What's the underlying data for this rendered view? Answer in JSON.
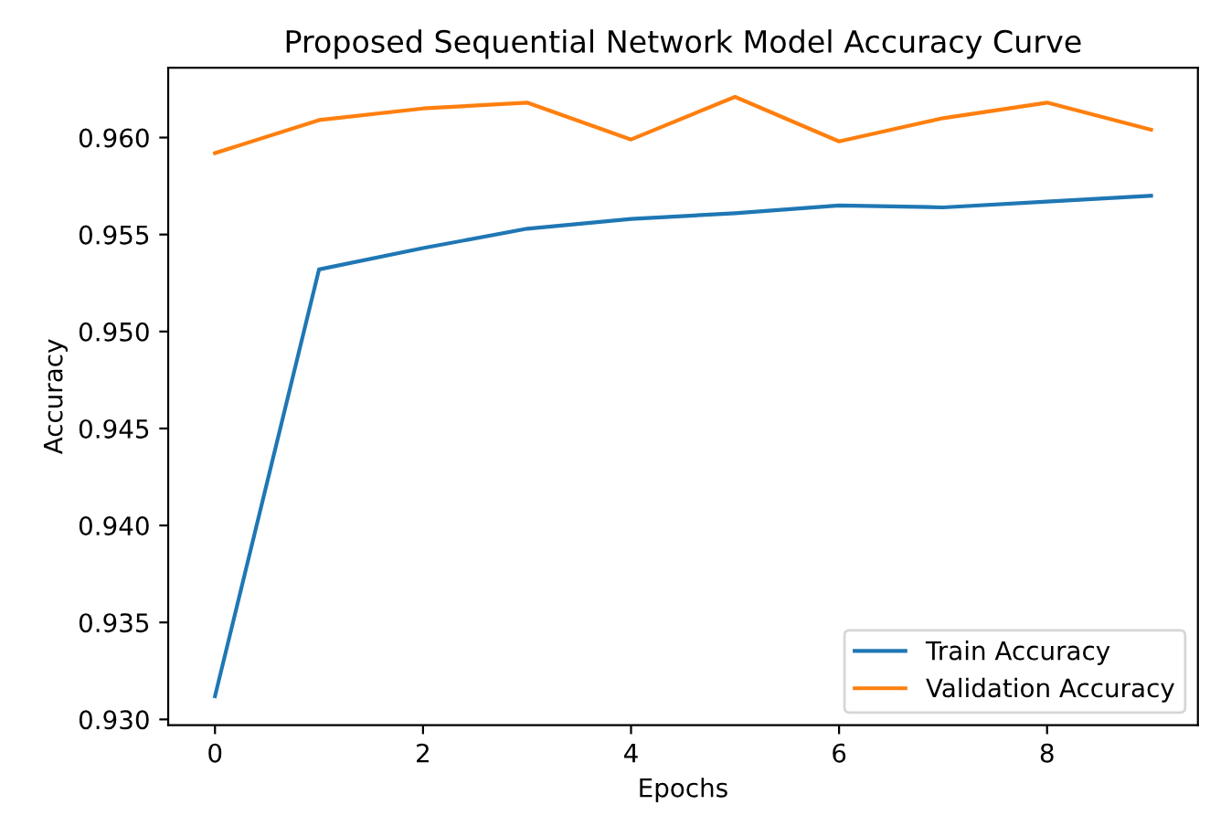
{
  "chart_data": {
    "type": "line",
    "title": "Proposed Sequential Network Model Accuracy Curve",
    "xlabel": "Epochs",
    "ylabel": "Accuracy",
    "x": [
      0,
      1,
      2,
      3,
      4,
      5,
      6,
      7,
      8,
      9
    ],
    "series": [
      {
        "name": "Train Accuracy",
        "color": "#1f77b4",
        "values": [
          0.9312,
          0.9532,
          0.9543,
          0.9553,
          0.9558,
          0.9561,
          0.9565,
          0.9564,
          0.9567,
          0.957
        ]
      },
      {
        "name": "Validation Accuracy",
        "color": "#ff7f0e",
        "values": [
          0.9592,
          0.9609,
          0.9615,
          0.9618,
          0.9599,
          0.9621,
          0.9598,
          0.961,
          0.9618,
          0.9604
        ]
      }
    ],
    "xlim": [
      -0.45,
      9.45
    ],
    "xticks": [
      0,
      2,
      4,
      6,
      8
    ],
    "ylim": [
      0.9297,
      0.9636
    ],
    "yticks": [
      {
        "value": 0.93,
        "label": "0.930"
      },
      0.935,
      {
        "value": 0.94,
        "label": "0.940"
      },
      0.945,
      {
        "value": 0.95,
        "label": "0.950"
      },
      0.955,
      {
        "value": 0.96,
        "label": "0.960"
      }
    ],
    "grid": false,
    "legend": "bottom right",
    "marker": "none",
    "line_style": "solid"
  }
}
